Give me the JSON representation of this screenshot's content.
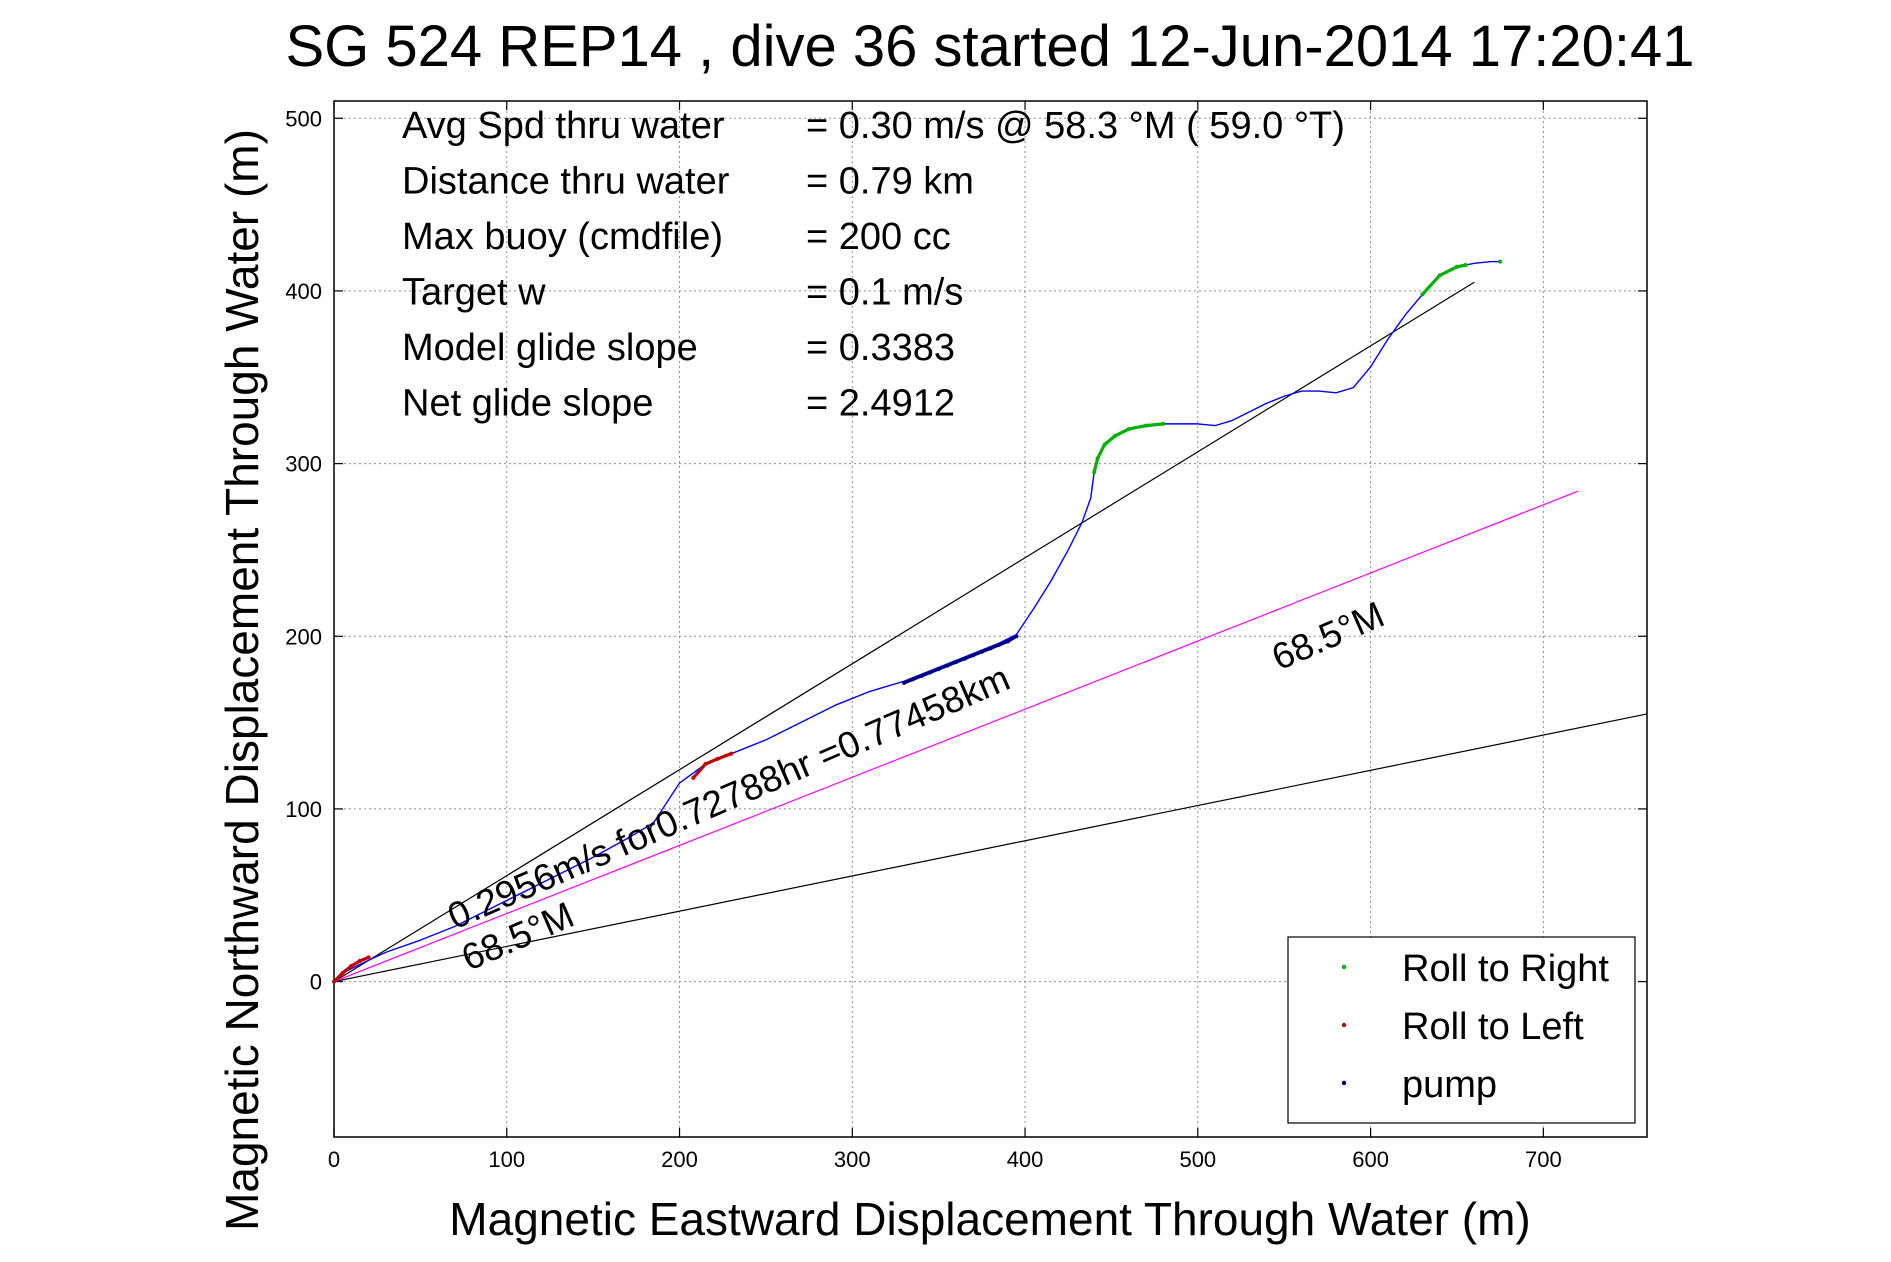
{
  "chart_data": {
    "type": "scatter",
    "title": "SG 524   REP14  , dive 36 started 12-Jun-2014 17:20:41",
    "xlabel": "Magnetic Eastward Displacement Through Water (m)",
    "ylabel": "Magnetic Northward Displacement Through Water (m)",
    "xlim": [
      0,
      760
    ],
    "ylim": [
      -90,
      510
    ],
    "xticks": [
      0,
      100,
      200,
      300,
      400,
      500,
      600,
      700
    ],
    "yticks": [
      0,
      100,
      200,
      300,
      400,
      500
    ],
    "grid": true,
    "legend_position": "bottom-right",
    "stats": [
      {
        "label": "Avg Spd thru water",
        "value": "=  0.30 m/s @  58.3 °M ( 59.0 °T)"
      },
      {
        "label": "Distance thru water",
        "value": "=  0.79 km"
      },
      {
        "label": "Max buoy (cmdfile)",
        "value": "= 200 cc"
      },
      {
        "label": "Target w",
        "value": "= 0.1 m/s"
      },
      {
        "label": "Model glide slope",
        "value": "= 0.3383"
      },
      {
        "label": "Net glide slope",
        "value": "= 2.4912"
      }
    ],
    "track": {
      "color": "#0000ff",
      "x": [
        0,
        5,
        15,
        30,
        50,
        70,
        90,
        110,
        130,
        150,
        170,
        185,
        200,
        215,
        230,
        250,
        270,
        290,
        310,
        330,
        350,
        370,
        385,
        395,
        405,
        415,
        425,
        433,
        438,
        440,
        442,
        446,
        452,
        460,
        470,
        480,
        490,
        500,
        510,
        520,
        530,
        540,
        550,
        560,
        570,
        580,
        590,
        600,
        610,
        620,
        630,
        640,
        650,
        660,
        670,
        675
      ],
      "y": [
        0,
        5,
        10,
        17,
        24,
        32,
        42,
        52,
        62,
        72,
        83,
        92,
        115,
        126,
        132,
        140,
        150,
        160,
        168,
        174,
        182,
        190,
        196,
        201,
        216,
        232,
        250,
        266,
        280,
        295,
        303,
        311,
        316,
        320,
        322,
        323,
        323,
        323,
        322,
        325,
        330,
        335,
        339,
        342,
        342,
        341,
        344,
        356,
        372,
        386,
        398,
        409,
        414,
        416,
        417,
        417
      ]
    },
    "roll_right": {
      "color": "#00b000",
      "segments": [
        {
          "x": [
            440,
            442,
            446,
            452,
            460,
            470,
            480
          ],
          "y": [
            295,
            303,
            311,
            316,
            320,
            322,
            323
          ]
        },
        {
          "x": [
            630,
            640,
            650,
            655
          ],
          "y": [
            398,
            409,
            414,
            415
          ]
        },
        {
          "x": [
            675
          ],
          "y": [
            417
          ]
        }
      ]
    },
    "roll_left": {
      "color": "#c00000",
      "segments": [
        {
          "x": [
            0,
            5,
            10,
            15,
            20
          ],
          "y": [
            0,
            5,
            9,
            12,
            14
          ]
        },
        {
          "x": [
            208,
            215,
            222,
            230
          ],
          "y": [
            118,
            126,
            129,
            132
          ]
        }
      ]
    },
    "pump": {
      "color": "#000080",
      "x": [
        330,
        335,
        340,
        345,
        350,
        355,
        360,
        365,
        370,
        375,
        380,
        385,
        390,
        395
      ],
      "y": [
        173,
        175,
        177,
        179,
        181,
        183,
        185,
        187,
        189,
        191,
        193,
        195,
        197,
        200
      ]
    },
    "lines": [
      {
        "name": "upper envelope",
        "color": "#000000",
        "x": [
          0,
          660
        ],
        "y": [
          0,
          405
        ]
      },
      {
        "name": "lower envelope",
        "color": "#000000",
        "x": [
          0,
          760
        ],
        "y": [
          0,
          155
        ]
      },
      {
        "name": "heading",
        "color": "#ff00ff",
        "x": [
          0,
          720
        ],
        "y": [
          0,
          284
        ]
      }
    ],
    "annotations": [
      {
        "text": "0.2956m/s for0.72788hr =0.77458km",
        "x": 70,
        "y": 30,
        "angle_deg": 23.5
      },
      {
        "text": "68.5°M",
        "x": 78,
        "y": 6,
        "angle_deg": 23.5
      },
      {
        "text": "68.5°M",
        "x": 547,
        "y": 180,
        "angle_deg": 23.5
      }
    ],
    "legend": [
      {
        "label": "Roll to Right",
        "color": "#00b000"
      },
      {
        "label": "Roll to Left",
        "color": "#c00000"
      },
      {
        "label": "pump",
        "color": "#000080"
      }
    ]
  }
}
